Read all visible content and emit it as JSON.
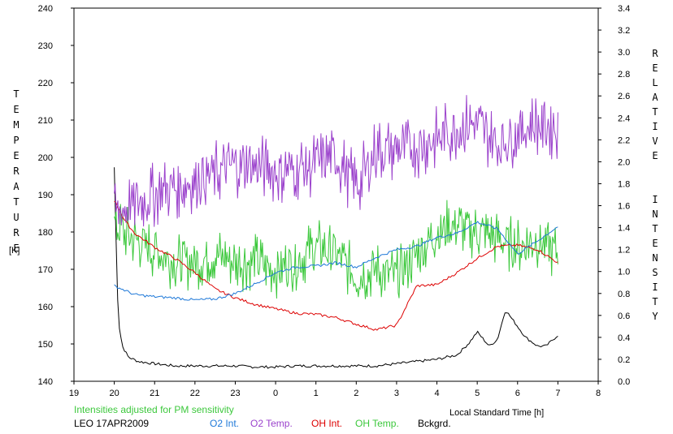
{
  "chart_data": {
    "type": "line",
    "xlabel": "Local Standard Time [h]",
    "ylabel_left": "TEMPERATURE",
    "ylabel_left_unit": "[K]",
    "ylabel_right": "RELATIVE INTENSITY",
    "xlim": [
      19,
      8
    ],
    "x_tick_labels": [
      "19",
      "20",
      "21",
      "22",
      "23",
      "0",
      "1",
      "2",
      "3",
      "4",
      "5",
      "6",
      "7",
      "8"
    ],
    "ylim_left": [
      140,
      240
    ],
    "y_left_ticks": [
      140,
      150,
      160,
      170,
      180,
      190,
      200,
      210,
      220,
      230,
      240
    ],
    "ylim_right": [
      0.0,
      3.4
    ],
    "y_right_ticks": [
      "0.0",
      "0.2",
      "0.4",
      "0.6",
      "0.8",
      "1.0",
      "1.2",
      "1.4",
      "1.6",
      "1.8",
      "2.0",
      "2.2",
      "2.4",
      "2.6",
      "2.8",
      "3.0",
      "3.2",
      "3.4"
    ],
    "note": "Intensities adjusted for PM sensitivity",
    "station": "LEO 17APR2009",
    "series": [
      {
        "name": "O2 Int.",
        "color": "#1e78d8",
        "axis": "right",
        "x": [
          20.0,
          20.5,
          21.0,
          21.5,
          22.0,
          22.5,
          23.0,
          23.5,
          24.0,
          24.5,
          25.0,
          25.5,
          26.0,
          26.5,
          27.0,
          27.5,
          28.0,
          28.5,
          29.0,
          29.5,
          30.0,
          30.5,
          31.0
        ],
        "y": [
          0.87,
          0.79,
          0.77,
          0.76,
          0.74,
          0.75,
          0.8,
          0.89,
          0.99,
          1.04,
          1.05,
          1.08,
          1.04,
          1.13,
          1.2,
          1.23,
          1.31,
          1.35,
          1.45,
          1.39,
          1.16,
          1.28,
          1.41
        ]
      },
      {
        "name": "O2 Temp.",
        "color": "#9b42cc",
        "axis": "left",
        "noise": 9,
        "x": [
          20.0,
          20.5,
          21.0,
          21.5,
          22.0,
          22.5,
          23.0,
          23.5,
          24.0,
          24.5,
          25.0,
          25.5,
          26.0,
          26.5,
          27.0,
          27.5,
          28.0,
          28.5,
          29.0,
          29.5,
          30.0,
          30.5,
          31.0
        ],
        "y": [
          185,
          188,
          190,
          192,
          194,
          196,
          198,
          198,
          196,
          197,
          198,
          200,
          192,
          202,
          202,
          203,
          205,
          208,
          209,
          203,
          207,
          209,
          208
        ]
      },
      {
        "name": "OH Int.",
        "color": "#dd0000",
        "axis": "right",
        "x": [
          20.0,
          20.25,
          20.5,
          21.0,
          21.5,
          22.0,
          22.5,
          23.0,
          23.5,
          24.0,
          24.5,
          25.0,
          25.5,
          26.0,
          26.5,
          27.0,
          27.5,
          28.0,
          28.5,
          29.0,
          29.5,
          30.0,
          30.5,
          31.0
        ],
        "y": [
          1.65,
          1.47,
          1.35,
          1.22,
          1.12,
          0.99,
          0.84,
          0.76,
          0.7,
          0.66,
          0.62,
          0.61,
          0.58,
          0.52,
          0.47,
          0.51,
          0.87,
          0.88,
          0.99,
          1.12,
          1.23,
          1.24,
          1.2,
          1.08
        ]
      },
      {
        "name": "OH Temp.",
        "color": "#3cc83c",
        "axis": "left",
        "noise": 8,
        "x": [
          20.0,
          20.5,
          21.0,
          21.5,
          22.0,
          22.5,
          23.0,
          23.5,
          24.0,
          24.5,
          25.0,
          25.5,
          26.0,
          26.5,
          27.0,
          27.5,
          28.0,
          28.5,
          29.0,
          29.5,
          30.0,
          30.5,
          31.0
        ],
        "y": [
          182,
          178,
          175,
          172,
          172,
          174,
          172,
          172,
          170,
          172,
          176,
          174,
          168,
          170,
          168,
          174,
          180,
          182,
          180,
          178,
          176,
          178,
          174
        ]
      },
      {
        "name": "Bckgrd.",
        "color": "#000000",
        "axis": "right",
        "x": [
          20.0,
          20.05,
          20.1,
          20.2,
          20.35,
          20.6,
          21.0,
          21.5,
          22.0,
          22.5,
          23.0,
          23.5,
          24.0,
          24.5,
          25.0,
          25.5,
          26.0,
          26.5,
          27.0,
          27.5,
          28.0,
          28.5,
          28.8,
          29.0,
          29.3,
          29.5,
          29.7,
          29.9,
          30.2,
          30.5,
          30.7,
          31.0
        ],
        "y": [
          1.95,
          1.2,
          0.55,
          0.32,
          0.22,
          0.18,
          0.16,
          0.14,
          0.14,
          0.14,
          0.14,
          0.13,
          0.13,
          0.14,
          0.14,
          0.14,
          0.14,
          0.14,
          0.16,
          0.18,
          0.2,
          0.24,
          0.35,
          0.45,
          0.32,
          0.38,
          0.65,
          0.55,
          0.4,
          0.32,
          0.32,
          0.42
        ]
      }
    ]
  }
}
